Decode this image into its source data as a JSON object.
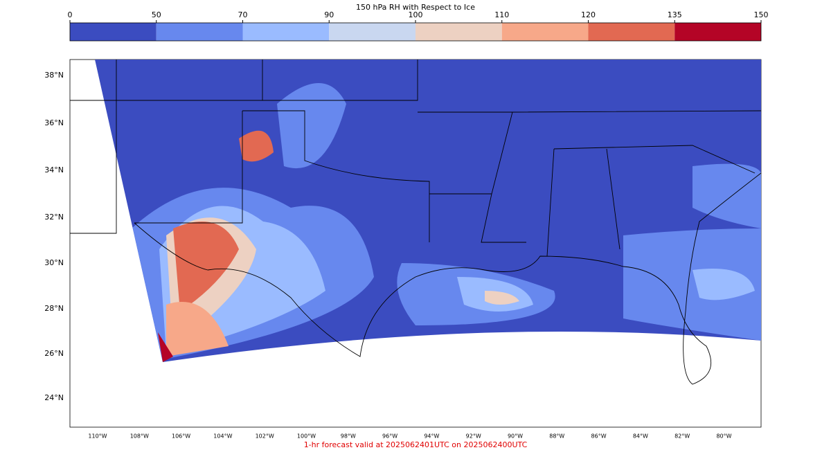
{
  "colorbar": {
    "title": "150 hPa RH with Respect to Ice",
    "ticks": [
      0,
      50,
      70,
      90,
      100,
      110,
      120,
      135,
      150
    ],
    "colors": [
      "#3b4cc0",
      "#6788ee",
      "#9abbff",
      "#c9d7f0",
      "#edd1c2",
      "#f7a889",
      "#e26952",
      "#b40426"
    ]
  },
  "map": {
    "lat_labels": [
      "38°N",
      "36°N",
      "34°N",
      "32°N",
      "30°N",
      "28°N",
      "26°N",
      "24°N"
    ],
    "lon_labels": [
      "110°W",
      "108°W",
      "106°W",
      "104°W",
      "102°W",
      "100°W",
      "98°W",
      "96°W",
      "94°W",
      "92°W",
      "90°W",
      "88°W",
      "86°W",
      "84°W",
      "82°W",
      "80°W"
    ]
  },
  "footer": "1-hr forecast valid at 2025062401UTC on 2025062400UTC"
}
